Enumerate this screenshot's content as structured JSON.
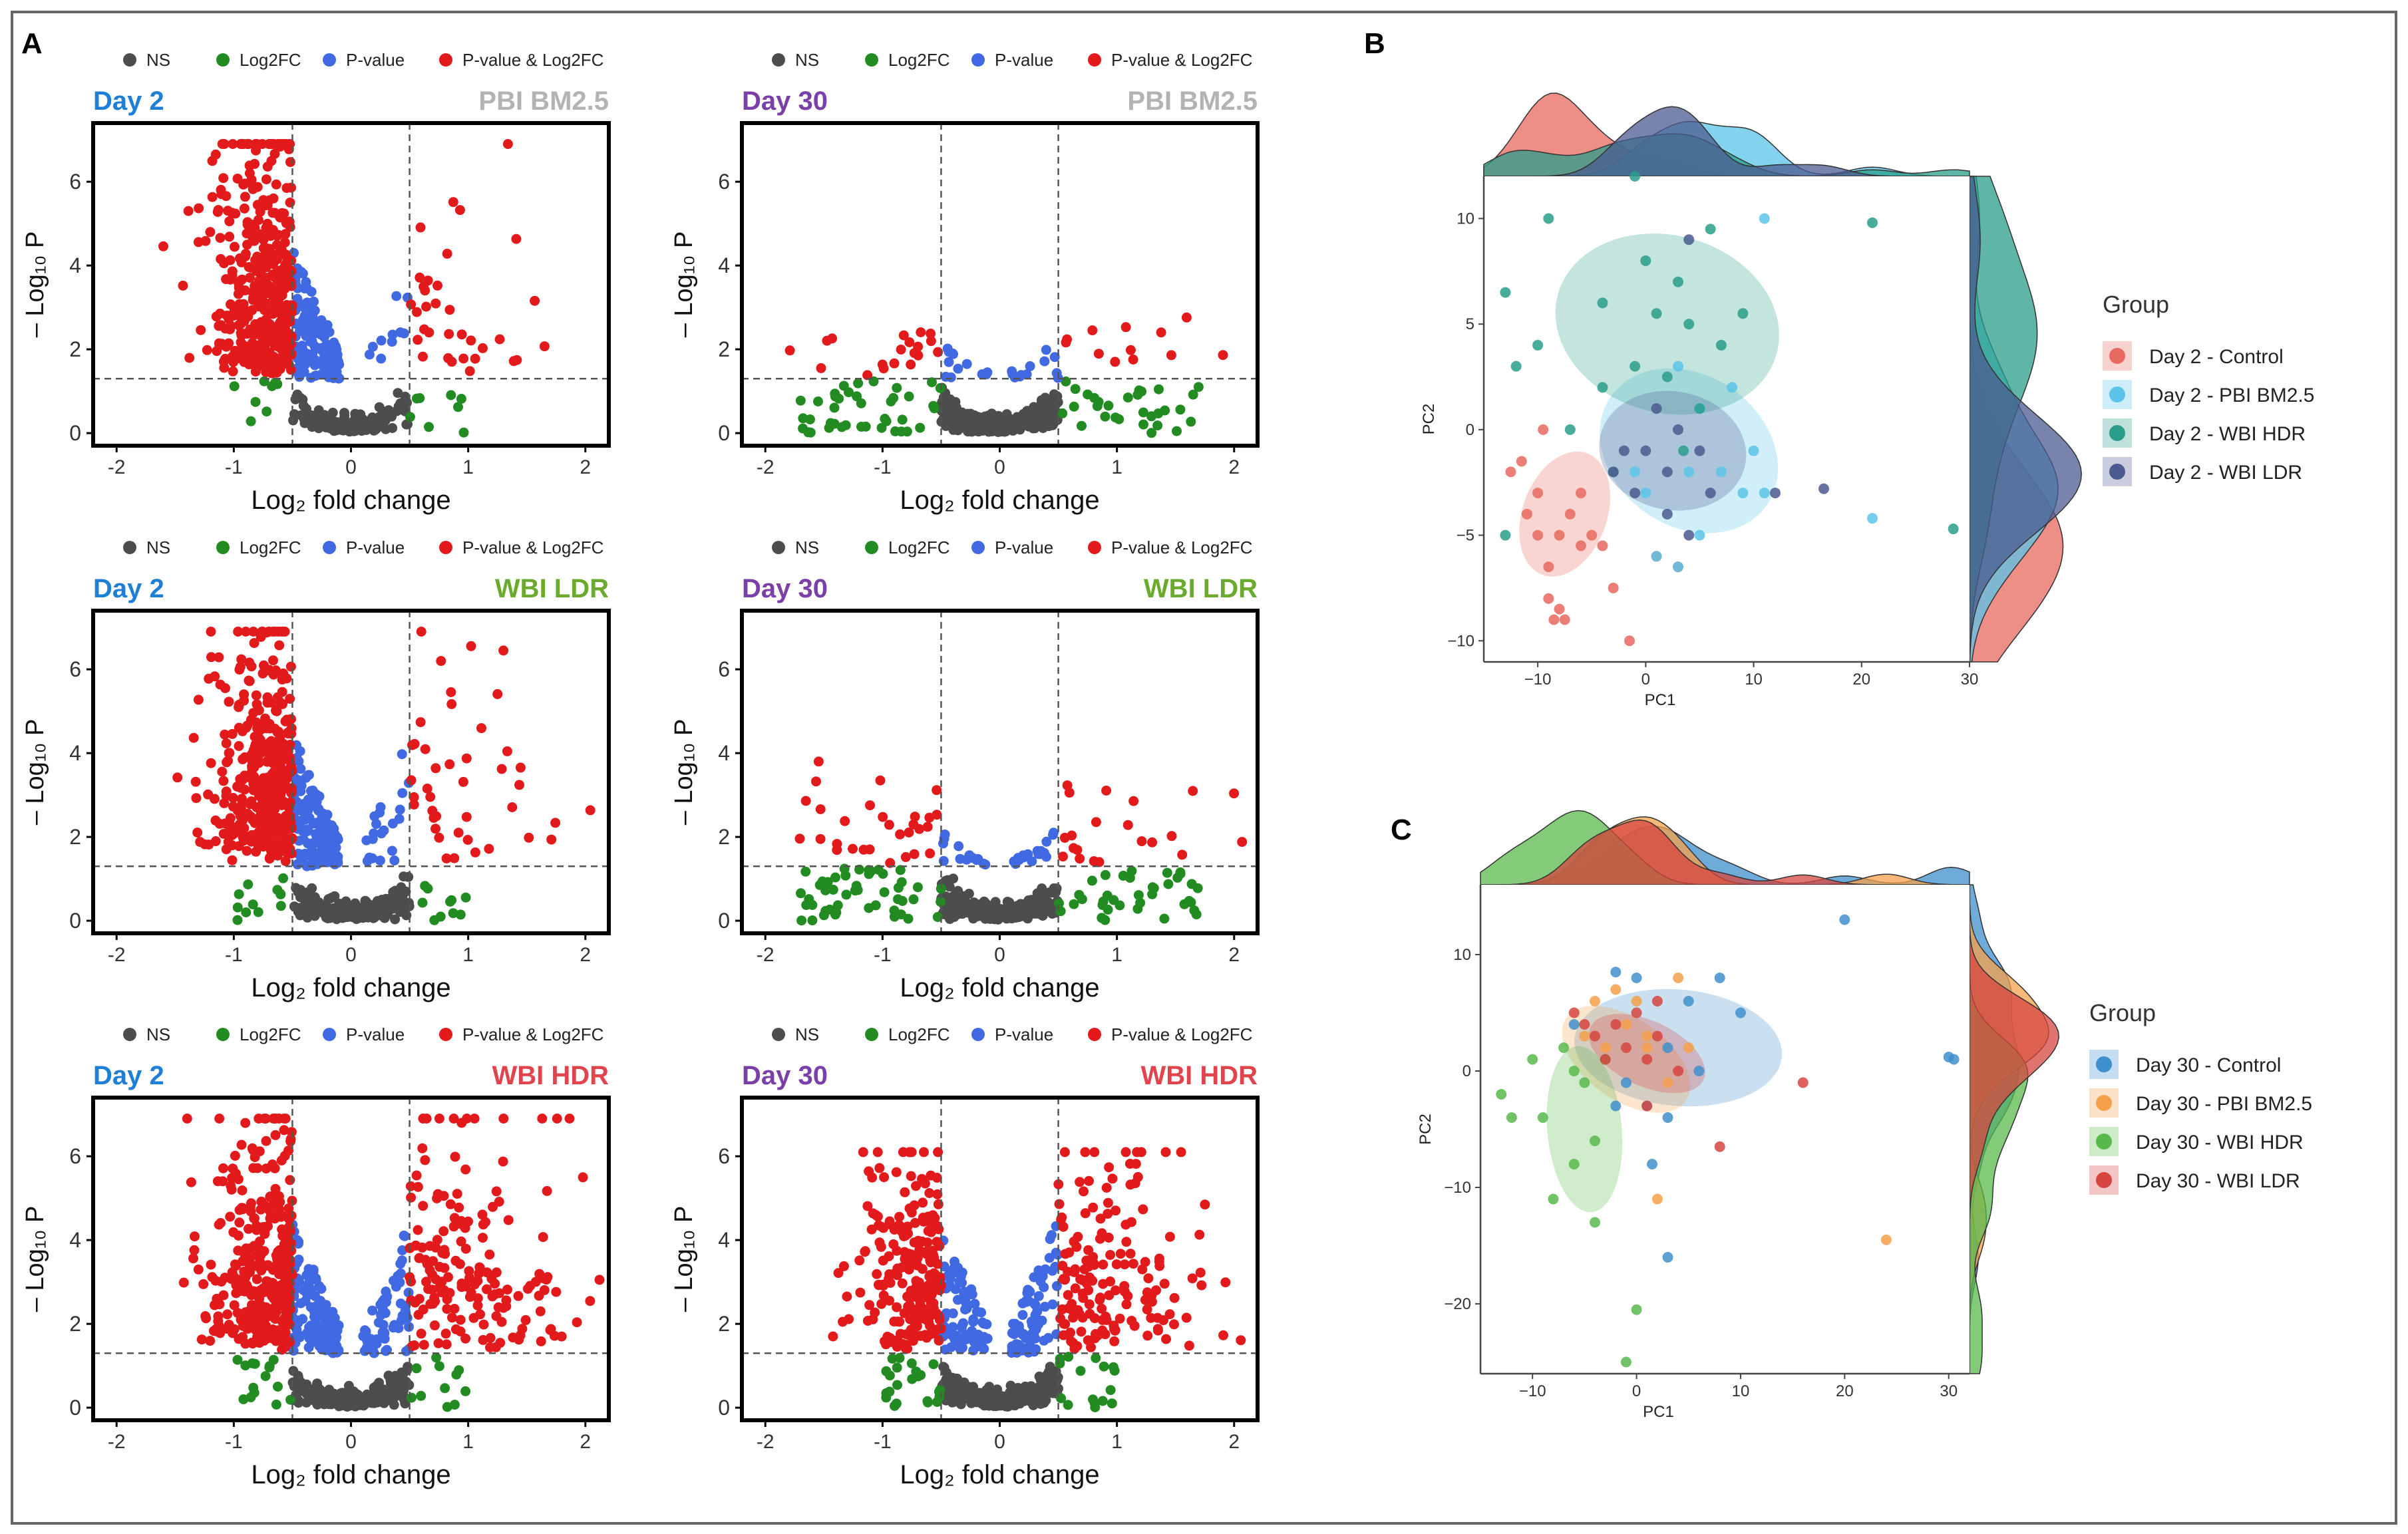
{
  "panel_letters": {
    "a": "A",
    "b": "B",
    "c": "C"
  },
  "colors": {
    "ns": "#4d4d4d",
    "log2fc": "#228b22",
    "pvalue": "#4169e1",
    "both": "#e31a1c",
    "day2": "#1e7fd6",
    "day30": "#7b3fa8",
    "pbi": "#b3b3b3",
    "wbi_ldr": "#6aaa2c",
    "wbi_hdr": "#e0454e",
    "border": "#666666"
  },
  "volcano_legend": [
    "NS",
    "Log2FC",
    "P-value",
    "P-value & Log2FC"
  ],
  "volcano_axes": {
    "x_label": "Log₂ fold change",
    "y_label": "– Log₁₀ P",
    "x_ticks": [
      "-2",
      "-1",
      "0",
      "1",
      "2"
    ],
    "y_ticks": [
      "0",
      "2",
      "4",
      "6"
    ],
    "x_range": [
      -2.2,
      2.2
    ],
    "y_range": [
      -0.3,
      7.4
    ],
    "fc_cutoff": 0.5,
    "p_cutoff": 1.3
  },
  "chart_data": [
    {
      "type": "scatter",
      "subtype": "volcano",
      "day": "Day 2",
      "treatment": "PBI BM2.5",
      "day_color": "day2",
      "treat_color": "pbi",
      "counts": {
        "ns": 140,
        "log2fc": 16,
        "pvalue": 150,
        "both": 470
      },
      "y_max": 6.9,
      "up_fraction": 0.06
    },
    {
      "type": "scatter",
      "subtype": "volcano",
      "day": "Day 30",
      "treatment": "PBI BM2.5",
      "day_color": "day30",
      "treat_color": "pbi",
      "counts": {
        "ns": 260,
        "log2fc": 70,
        "pvalue": 25,
        "both": 32
      },
      "y_max": 3.0,
      "up_fraction": 0.5
    },
    {
      "type": "scatter",
      "subtype": "volcano",
      "day": "Day 2",
      "treatment": "WBI LDR",
      "day_color": "day2",
      "treat_color": "wbi_ldr",
      "counts": {
        "ns": 160,
        "log2fc": 22,
        "pvalue": 170,
        "both": 430
      },
      "y_max": 6.9,
      "up_fraction": 0.1
    },
    {
      "type": "scatter",
      "subtype": "volcano",
      "day": "Day 30",
      "treatment": "WBI LDR",
      "day_color": "day30",
      "treat_color": "wbi_ldr",
      "counts": {
        "ns": 260,
        "log2fc": 85,
        "pvalue": 30,
        "both": 50
      },
      "y_max": 3.8,
      "up_fraction": 0.4
    },
    {
      "type": "scatter",
      "subtype": "volcano",
      "day": "Day 2",
      "treatment": "WBI HDR",
      "day_color": "day2",
      "treat_color": "wbi_hdr",
      "counts": {
        "ns": 200,
        "log2fc": 26,
        "pvalue": 190,
        "both": 500
      },
      "y_max": 6.9,
      "up_fraction": 0.33
    },
    {
      "type": "scatter",
      "subtype": "volcano",
      "day": "Day 30",
      "treatment": "WBI HDR",
      "day_color": "day30",
      "treat_color": "wbi_hdr",
      "counts": {
        "ns": 260,
        "log2fc": 40,
        "pvalue": 140,
        "both": 380
      },
      "y_max": 6.1,
      "up_fraction": 0.48
    },
    {
      "type": "scatter",
      "subtype": "pca",
      "panel": "B",
      "xlabel": "PC1",
      "ylabel": "PC2",
      "xlim": [
        -15,
        30
      ],
      "ylim": [
        -11,
        12
      ],
      "x_ticks": [
        -10,
        0,
        10,
        20,
        30
      ],
      "y_ticks": [
        -10,
        -5,
        0,
        5,
        10
      ],
      "legend_title": "Group",
      "groups": [
        {
          "name": "Day 2 - Control",
          "color": "#e8695f",
          "ellipse": {
            "cx": -7.5,
            "cy": -4,
            "rx": 6,
            "ry": 2,
            "angle": 70
          },
          "points": [
            [
              -11.5,
              -1.5
            ],
            [
              -10,
              -3
            ],
            [
              -10,
              -5
            ],
            [
              -9,
              -6.5
            ],
            [
              -9,
              -8
            ],
            [
              -8,
              -8.5
            ],
            [
              -8.5,
              -9
            ],
            [
              -7.5,
              -9
            ],
            [
              -8,
              -5
            ],
            [
              -7,
              -4
            ],
            [
              -6,
              -5.5
            ],
            [
              -6,
              -3
            ],
            [
              -5,
              -5
            ],
            [
              -9.5,
              0
            ],
            [
              -11,
              -4
            ],
            [
              -4,
              -5.5
            ],
            [
              -3,
              -7.5
            ],
            [
              -1.5,
              -10
            ],
            [
              1,
              -6
            ],
            [
              3,
              -6.5
            ],
            [
              -12.5,
              -2
            ]
          ]
        },
        {
          "name": "Day 2 - PBI BM2.5",
          "color": "#5bc4e8",
          "ellipse": {
            "cx": 4,
            "cy": -1,
            "rx": 7,
            "ry": 4.5,
            "angle": 55
          },
          "points": [
            [
              11,
              10
            ],
            [
              21,
              -4.2
            ],
            [
              3,
              -6.5
            ],
            [
              5,
              -5
            ],
            [
              7,
              -2
            ],
            [
              9,
              -3
            ],
            [
              10,
              -1
            ],
            [
              1,
              -6
            ],
            [
              3,
              3
            ],
            [
              0,
              -3
            ],
            [
              -1,
              -2
            ],
            [
              5,
              1
            ],
            [
              8,
              2
            ],
            [
              11,
              -3
            ],
            [
              4,
              -2
            ]
          ]
        },
        {
          "name": "Day 2 - WBI HDR",
          "color": "#2a9d8a",
          "ellipse": {
            "cx": 2,
            "cy": 5,
            "rx": 10.5,
            "ry": 4.2,
            "angle": -15
          },
          "points": [
            [
              -1,
              12
            ],
            [
              -13,
              -5
            ],
            [
              -9,
              10
            ],
            [
              -13,
              6.5
            ],
            [
              -10,
              4
            ],
            [
              -12,
              3
            ],
            [
              -7,
              0
            ],
            [
              -4,
              2
            ],
            [
              0,
              8
            ],
            [
              3,
              7
            ],
            [
              6,
              9.5
            ],
            [
              4,
              5
            ],
            [
              2,
              2.5
            ],
            [
              -1,
              3
            ],
            [
              5,
              1
            ],
            [
              7,
              4
            ],
            [
              9,
              5.5
            ],
            [
              -4,
              6
            ],
            [
              21,
              9.8
            ],
            [
              28.5,
              -4.7
            ],
            [
              -3,
              -2
            ],
            [
              3.5,
              -1
            ],
            [
              1,
              5.5
            ]
          ]
        },
        {
          "name": "Day 2 - WBI LDR",
          "color": "#4b5b8f",
          "ellipse": {
            "cx": 2.5,
            "cy": -1,
            "rx": 5.5,
            "ry": 3.5,
            "angle": 80
          },
          "points": [
            [
              4,
              9
            ],
            [
              0,
              -1
            ],
            [
              2,
              -2
            ],
            [
              -1,
              -3
            ],
            [
              3,
              0
            ],
            [
              6,
              -3
            ],
            [
              1,
              1
            ],
            [
              -2,
              -1
            ],
            [
              5,
              -1
            ],
            [
              4,
              -5
            ],
            [
              12,
              -3
            ],
            [
              16.5,
              -2.8
            ],
            [
              -3,
              -2
            ],
            [
              2,
              -4
            ]
          ]
        }
      ]
    },
    {
      "type": "scatter",
      "subtype": "pca",
      "panel": "C",
      "xlabel": "PC1",
      "ylabel": "PC2",
      "xlim": [
        -15,
        32
      ],
      "ylim": [
        -26,
        16
      ],
      "x_ticks": [
        -10,
        0,
        10,
        20,
        30
      ],
      "y_ticks": [
        -20,
        -10,
        0,
        10
      ],
      "legend_title": "Group",
      "groups": [
        {
          "name": "Day 30 - Control",
          "color": "#3f8fcc",
          "ellipse": {
            "cx": 4,
            "cy": 2,
            "rx": 10,
            "ry": 5,
            "angle": -5
          },
          "points": [
            [
              20,
              13
            ],
            [
              30,
              1.2
            ],
            [
              30.5,
              1
            ],
            [
              10,
              5
            ],
            [
              -2,
              8.5
            ],
            [
              0,
              8
            ],
            [
              5,
              6
            ],
            [
              8,
              8
            ],
            [
              3,
              2
            ],
            [
              -1,
              -1
            ],
            [
              1,
              -3
            ],
            [
              3,
              -4
            ],
            [
              -2,
              -3
            ],
            [
              1.5,
              -8
            ],
            [
              3,
              -16
            ],
            [
              6,
              0
            ],
            [
              -6,
              4
            ]
          ]
        },
        {
          "name": "Day 30 - PBI BM2.5",
          "color": "#f5a04a",
          "ellipse": {
            "cx": -1,
            "cy": 1,
            "rx": 7,
            "ry": 3.5,
            "angle": -35
          },
          "points": [
            [
              -4,
              6
            ],
            [
              -2,
              7
            ],
            [
              -1,
              4
            ],
            [
              1,
              2
            ],
            [
              3,
              -1
            ],
            [
              5,
              2
            ],
            [
              0,
              6
            ],
            [
              4,
              8
            ],
            [
              -3,
              2
            ],
            [
              2,
              -11
            ],
            [
              24,
              -14.5
            ],
            [
              -5,
              3
            ],
            [
              1,
              3
            ]
          ]
        },
        {
          "name": "Day 30 - WBI HDR",
          "color": "#59b84c",
          "ellipse": {
            "cx": -5,
            "cy": -5,
            "rx": 8,
            "ry": 3.2,
            "angle": 95
          },
          "points": [
            [
              -13,
              -2
            ],
            [
              -12,
              -4
            ],
            [
              -9,
              -4
            ],
            [
              -6,
              -8
            ],
            [
              -8,
              -11
            ],
            [
              -4,
              -13
            ],
            [
              -5,
              -1
            ],
            [
              -7,
              2
            ],
            [
              -3,
              1
            ],
            [
              0,
              -20.5
            ],
            [
              -1,
              -25
            ],
            [
              -6,
              0
            ],
            [
              -10,
              1
            ],
            [
              -4,
              -6
            ]
          ]
        },
        {
          "name": "Day 30 - WBI LDR",
          "color": "#d6453f",
          "ellipse": {
            "cx": 1,
            "cy": 1.5,
            "rx": 6,
            "ry": 2.8,
            "angle": -25
          },
          "points": [
            [
              -4,
              3
            ],
            [
              -2,
              4
            ],
            [
              -1,
              2
            ],
            [
              1,
              1
            ],
            [
              2,
              3
            ],
            [
              4,
              0
            ],
            [
              -3,
              1
            ],
            [
              0,
              5
            ],
            [
              2,
              6
            ],
            [
              -6,
              5
            ],
            [
              16,
              -1
            ],
            [
              8,
              -6.5
            ],
            [
              -5,
              4
            ],
            [
              1,
              -3
            ]
          ]
        }
      ]
    }
  ]
}
